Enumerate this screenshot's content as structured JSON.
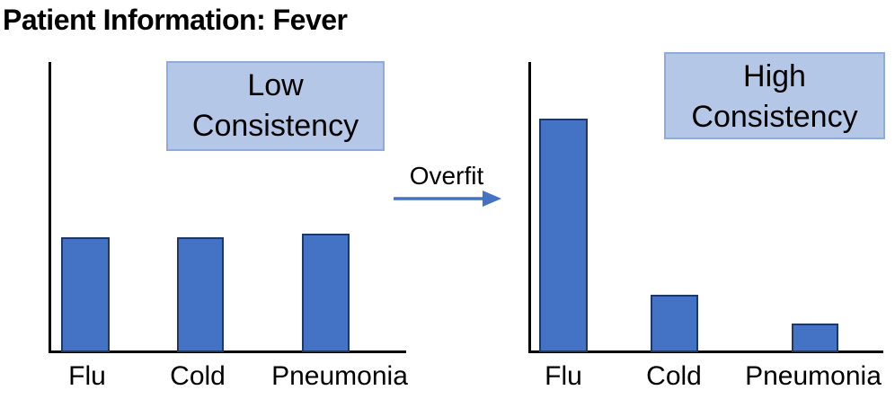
{
  "page_title": "Patient Information: Fever",
  "colors": {
    "background": "#FFFFFF",
    "text": "#000000",
    "bar_fill": "#4472C4",
    "bar_border": "#1F3864",
    "box_fill": "#B4C7E7",
    "box_border": "#8FAADC",
    "arrow": "#4472C4",
    "axis": "#000000"
  },
  "annotation": {
    "label": "Overfit",
    "arrow_icon": "right-arrow"
  },
  "chart_data": [
    {
      "type": "bar",
      "panel": "left",
      "badge": {
        "label": "Low Consistency",
        "line1": "Low",
        "line2": "Consistency"
      },
      "categories": [
        "Flu",
        "Cold",
        "Pneumonia"
      ],
      "values": [
        0.4,
        0.4,
        0.41
      ],
      "ylim": [
        0,
        1
      ],
      "xlabel": "",
      "ylabel": "",
      "grid": false,
      "ticks": false,
      "layout_note": "bare left and bottom black spines, unlabeled y-axis, three equal-height blue bars"
    },
    {
      "type": "bar",
      "panel": "right",
      "badge": {
        "label": "High Consistency",
        "line1": "High",
        "line2": "Consistency"
      },
      "categories": [
        "Flu",
        "Cold",
        "Pneumonia"
      ],
      "values": [
        0.81,
        0.2,
        0.1
      ],
      "ylim": [
        0,
        1
      ],
      "xlabel": "",
      "ylabel": "",
      "grid": false,
      "ticks": false,
      "layout_note": "bare left and bottom black spines, dominant Flu bar after overfitting"
    }
  ]
}
